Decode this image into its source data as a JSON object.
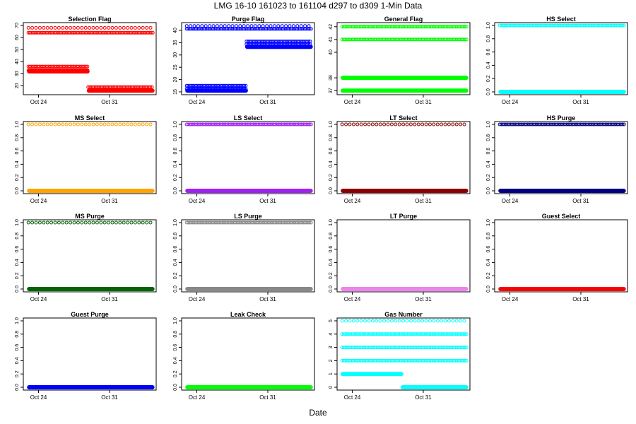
{
  "page_title": "LMG   16-10     161023 to 161104     d297 to d309    1-Min Data",
  "x_axis_label": "Date",
  "chart_data": [
    {
      "type": "scatter",
      "title": "Selection Flag",
      "color": "#ff0000",
      "xlim": [
        296.5,
        309.6
      ],
      "xticks": [
        {
          "value": 298,
          "label": "Oct 24"
        },
        {
          "value": 305,
          "label": "Oct 31"
        }
      ],
      "ylim": [
        15,
        70
      ],
      "yticks": [
        20,
        30,
        40,
        50,
        60,
        70
      ],
      "series": [
        {
          "name": "y=68 sparse",
          "x_start": 297.0,
          "x_end": 309.3,
          "y": 68,
          "style": "sparse"
        },
        {
          "name": "y=64",
          "x_start": 297.0,
          "x_end": 309.3,
          "y": 64,
          "style": "dense"
        },
        {
          "name": "y=36",
          "x_start": 297.0,
          "x_end": 302.9,
          "y": 36,
          "style": "dense"
        },
        {
          "name": "y=33",
          "x_start": 297.0,
          "x_end": 302.9,
          "y": 33,
          "style": "dense"
        },
        {
          "name": "y=32",
          "x_start": 297.0,
          "x_end": 302.9,
          "y": 32,
          "style": "solid"
        },
        {
          "name": "y=19",
          "x_start": 302.9,
          "x_end": 309.3,
          "y": 19,
          "style": "dense"
        },
        {
          "name": "y=16",
          "x_start": 302.9,
          "x_end": 309.3,
          "y": 16,
          "style": "solid"
        }
      ]
    },
    {
      "type": "scatter",
      "title": "Purge Flag",
      "color": "#0000ff",
      "xlim": [
        296.5,
        309.6
      ],
      "xticks": [
        {
          "value": 298,
          "label": "Oct 24"
        },
        {
          "value": 305,
          "label": "Oct 31"
        }
      ],
      "ylim": [
        15,
        42
      ],
      "yticks": [
        15,
        20,
        25,
        30,
        35,
        40
      ],
      "series": [
        {
          "name": "y=41.8 sparse",
          "x_start": 297.0,
          "x_end": 309.3,
          "y": 41.8,
          "style": "sparse"
        },
        {
          "name": "y=40.6",
          "x_start": 297.0,
          "x_end": 309.3,
          "y": 40.6,
          "style": "dense"
        },
        {
          "name": "y=17.5",
          "x_start": 297.0,
          "x_end": 302.9,
          "y": 17.5,
          "style": "dense"
        },
        {
          "name": "y=16.3",
          "x_start": 297.0,
          "x_end": 302.9,
          "y": 16.3,
          "style": "dense"
        },
        {
          "name": "y=15.5",
          "x_start": 297.0,
          "x_end": 302.9,
          "y": 15.5,
          "style": "solid"
        },
        {
          "name": "y=35.5",
          "x_start": 302.9,
          "x_end": 309.3,
          "y": 35.5,
          "style": "dense"
        },
        {
          "name": "y=34.3",
          "x_start": 302.9,
          "x_end": 309.3,
          "y": 34.3,
          "style": "dense"
        },
        {
          "name": "y=33.3",
          "x_start": 302.9,
          "x_end": 309.3,
          "y": 33.3,
          "style": "solid"
        }
      ]
    },
    {
      "type": "scatter",
      "title": "General Flag",
      "color": "#00ff00",
      "xlim": [
        296.5,
        309.6
      ],
      "xticks": [
        {
          "value": 298,
          "label": "Oct 24"
        },
        {
          "value": 305,
          "label": "Oct 31"
        }
      ],
      "ylim": [
        36.9,
        42.1
      ],
      "yticks": [
        37,
        38,
        40,
        41,
        42
      ],
      "ytick_labels": [
        "37",
        "38",
        "40",
        "41",
        "42"
      ],
      "series": [
        {
          "name": "y=42",
          "x_start": 297.0,
          "x_end": 309.3,
          "y": 42,
          "style": "dense"
        },
        {
          "name": "y=41",
          "x_start": 297.0,
          "x_end": 309.3,
          "y": 41,
          "style": "dense"
        },
        {
          "name": "y=38",
          "x_start": 297.0,
          "x_end": 309.3,
          "y": 38,
          "style": "solid"
        },
        {
          "name": "y=37",
          "x_start": 297.0,
          "x_end": 309.3,
          "y": 37,
          "style": "solid"
        }
      ]
    },
    {
      "type": "scatter",
      "title": "HS Select",
      "color": "#00ffff",
      "xlim": [
        296.5,
        309.6
      ],
      "xticks": [
        {
          "value": 298,
          "label": "Oct 24"
        },
        {
          "value": 305,
          "label": "Oct 31"
        }
      ],
      "ylim": [
        0,
        1
      ],
      "yticks": [
        0.0,
        0.2,
        0.4,
        0.6,
        0.8,
        1.0
      ],
      "ytick_labels": [
        "0.0",
        "0.2",
        "0.4",
        "0.6",
        "0.8",
        "1.0"
      ],
      "series": [
        {
          "name": "y=1",
          "x_start": 297.0,
          "x_end": 309.3,
          "y": 1,
          "style": "dense"
        },
        {
          "name": "y=0",
          "x_start": 297.0,
          "x_end": 309.3,
          "y": 0,
          "style": "solid"
        }
      ]
    },
    {
      "type": "scatter",
      "title": "MS Select",
      "color": "#ffa500",
      "xlim": [
        296.5,
        309.6
      ],
      "xticks": [
        {
          "value": 298,
          "label": "Oct 24"
        },
        {
          "value": 305,
          "label": "Oct 31"
        }
      ],
      "ylim": [
        0,
        1
      ],
      "yticks": [
        0.0,
        0.2,
        0.4,
        0.6,
        0.8,
        1.0
      ],
      "ytick_labels": [
        "0.0",
        "0.2",
        "0.4",
        "0.6",
        "0.8",
        "1.0"
      ],
      "series": [
        {
          "name": "y=1",
          "x_start": 297.0,
          "x_end": 309.3,
          "y": 1,
          "style": "sparse"
        },
        {
          "name": "y=0",
          "x_start": 297.0,
          "x_end": 309.3,
          "y": 0,
          "style": "solid"
        }
      ]
    },
    {
      "type": "scatter",
      "title": "LS Select",
      "color": "#a020f0",
      "xlim": [
        296.5,
        309.6
      ],
      "xticks": [
        {
          "value": 298,
          "label": "Oct 24"
        },
        {
          "value": 305,
          "label": "Oct 31"
        }
      ],
      "ylim": [
        0,
        1
      ],
      "yticks": [
        0.0,
        0.2,
        0.4,
        0.6,
        0.8,
        1.0
      ],
      "ytick_labels": [
        "0.0",
        "0.2",
        "0.4",
        "0.6",
        "0.8",
        "1.0"
      ],
      "series": [
        {
          "name": "y=1",
          "x_start": 297.0,
          "x_end": 309.3,
          "y": 1,
          "style": "dense"
        },
        {
          "name": "y=0",
          "x_start": 297.0,
          "x_end": 309.3,
          "y": 0,
          "style": "solid"
        }
      ]
    },
    {
      "type": "scatter",
      "title": "LT Select",
      "color": "#8b0000",
      "xlim": [
        296.5,
        309.6
      ],
      "xticks": [
        {
          "value": 298,
          "label": "Oct 24"
        },
        {
          "value": 305,
          "label": "Oct 31"
        }
      ],
      "ylim": [
        0,
        1
      ],
      "yticks": [
        0.0,
        0.2,
        0.4,
        0.6,
        0.8,
        1.0
      ],
      "ytick_labels": [
        "0.0",
        "0.2",
        "0.4",
        "0.6",
        "0.8",
        "1.0"
      ],
      "series": [
        {
          "name": "y=1",
          "x_start": 297.0,
          "x_end": 309.3,
          "y": 1,
          "style": "sparse"
        },
        {
          "name": "y=0",
          "x_start": 297.0,
          "x_end": 309.3,
          "y": 0,
          "style": "solid"
        }
      ]
    },
    {
      "type": "scatter",
      "title": "HS Purge",
      "color": "#000080",
      "xlim": [
        296.5,
        309.6
      ],
      "xticks": [
        {
          "value": 298,
          "label": "Oct 24"
        },
        {
          "value": 305,
          "label": "Oct 31"
        }
      ],
      "ylim": [
        0,
        1
      ],
      "yticks": [
        0.0,
        0.2,
        0.4,
        0.6,
        0.8,
        1.0
      ],
      "ytick_labels": [
        "0.0",
        "0.2",
        "0.4",
        "0.6",
        "0.8",
        "1.0"
      ],
      "series": [
        {
          "name": "y=1",
          "x_start": 297.0,
          "x_end": 309.3,
          "y": 1,
          "style": "dense"
        },
        {
          "name": "y=0",
          "x_start": 297.0,
          "x_end": 309.3,
          "y": 0,
          "style": "solid"
        }
      ]
    },
    {
      "type": "scatter",
      "title": "MS Purge",
      "color": "#006400",
      "xlim": [
        296.5,
        309.6
      ],
      "xticks": [
        {
          "value": 298,
          "label": "Oct 24"
        },
        {
          "value": 305,
          "label": "Oct 31"
        }
      ],
      "ylim": [
        0,
        1
      ],
      "yticks": [
        0.0,
        0.2,
        0.4,
        0.6,
        0.8,
        1.0
      ],
      "ytick_labels": [
        "0.0",
        "0.2",
        "0.4",
        "0.6",
        "0.8",
        "1.0"
      ],
      "series": [
        {
          "name": "y=1",
          "x_start": 297.0,
          "x_end": 309.3,
          "y": 1,
          "style": "sparse"
        },
        {
          "name": "y=0",
          "x_start": 297.0,
          "x_end": 309.3,
          "y": 0,
          "style": "solid"
        }
      ]
    },
    {
      "type": "scatter",
      "title": "LS Purge",
      "color": "#888888",
      "xlim": [
        296.5,
        309.6
      ],
      "xticks": [
        {
          "value": 298,
          "label": "Oct 24"
        },
        {
          "value": 305,
          "label": "Oct 31"
        }
      ],
      "ylim": [
        0,
        1
      ],
      "yticks": [
        0.0,
        0.2,
        0.4,
        0.6,
        0.8,
        1.0
      ],
      "ytick_labels": [
        "0.0",
        "0.2",
        "0.4",
        "0.6",
        "0.8",
        "1.0"
      ],
      "series": [
        {
          "name": "y=1",
          "x_start": 297.0,
          "x_end": 309.3,
          "y": 1,
          "style": "dense"
        },
        {
          "name": "y=0",
          "x_start": 297.0,
          "x_end": 309.3,
          "y": 0,
          "style": "solid"
        }
      ]
    },
    {
      "type": "scatter",
      "title": "LT Purge",
      "color": "#ee82ee",
      "xlim": [
        296.5,
        309.6
      ],
      "xticks": [
        {
          "value": 298,
          "label": "Oct 24"
        },
        {
          "value": 305,
          "label": "Oct 31"
        }
      ],
      "ylim": [
        0,
        1
      ],
      "yticks": [
        0.0,
        0.2,
        0.4,
        0.6,
        0.8,
        1.0
      ],
      "ytick_labels": [
        "0.0",
        "0.2",
        "0.4",
        "0.6",
        "0.8",
        "1.0"
      ],
      "series": [
        {
          "name": "y=0",
          "x_start": 297.0,
          "x_end": 309.3,
          "y": 0,
          "style": "solid"
        }
      ]
    },
    {
      "type": "scatter",
      "title": "Guest Select",
      "color": "#ff0000",
      "xlim": [
        296.5,
        309.6
      ],
      "xticks": [
        {
          "value": 298,
          "label": "Oct 24"
        },
        {
          "value": 305,
          "label": "Oct 31"
        }
      ],
      "ylim": [
        0,
        1
      ],
      "yticks": [
        0.0,
        0.2,
        0.4,
        0.6,
        0.8,
        1.0
      ],
      "ytick_labels": [
        "0.0",
        "0.2",
        "0.4",
        "0.6",
        "0.8",
        "1.0"
      ],
      "series": [
        {
          "name": "y=0",
          "x_start": 297.0,
          "x_end": 309.3,
          "y": 0,
          "style": "solid"
        }
      ]
    },
    {
      "type": "scatter",
      "title": "Guest Purge",
      "color": "#0000ff",
      "xlim": [
        296.5,
        309.6
      ],
      "xticks": [
        {
          "value": 298,
          "label": "Oct 24"
        },
        {
          "value": 305,
          "label": "Oct 31"
        }
      ],
      "ylim": [
        0,
        1
      ],
      "yticks": [
        0.0,
        0.2,
        0.4,
        0.6,
        0.8,
        1.0
      ],
      "ytick_labels": [
        "0.0",
        "0.2",
        "0.4",
        "0.6",
        "0.8",
        "1.0"
      ],
      "series": [
        {
          "name": "y=0",
          "x_start": 297.0,
          "x_end": 309.3,
          "y": 0,
          "style": "solid"
        }
      ]
    },
    {
      "type": "scatter",
      "title": "Leak Check",
      "color": "#00ff00",
      "xlim": [
        296.5,
        309.6
      ],
      "xticks": [
        {
          "value": 298,
          "label": "Oct 24"
        },
        {
          "value": 305,
          "label": "Oct 31"
        }
      ],
      "ylim": [
        0,
        1
      ],
      "yticks": [
        0.0,
        0.2,
        0.4,
        0.6,
        0.8,
        1.0
      ],
      "ytick_labels": [
        "0.0",
        "0.2",
        "0.4",
        "0.6",
        "0.8",
        "1.0"
      ],
      "series": [
        {
          "name": "y=0",
          "x_start": 297.0,
          "x_end": 309.3,
          "y": 0,
          "style": "solid"
        }
      ]
    },
    {
      "type": "scatter",
      "title": "Gas Number",
      "color": "#00ffff",
      "xlim": [
        296.5,
        309.6
      ],
      "xticks": [
        {
          "value": 298,
          "label": "Oct 24"
        },
        {
          "value": 305,
          "label": "Oct 31"
        }
      ],
      "ylim": [
        0,
        5
      ],
      "yticks": [
        0,
        1,
        2,
        3,
        4,
        5
      ],
      "ytick_labels": [
        "0",
        "1",
        "2",
        "3",
        "4",
        "5"
      ],
      "series": [
        {
          "name": "y=5",
          "x_start": 297.0,
          "x_end": 309.3,
          "y": 5,
          "style": "sparse"
        },
        {
          "name": "y=4",
          "x_start": 297.0,
          "x_end": 309.3,
          "y": 4,
          "style": "dense"
        },
        {
          "name": "y=3",
          "x_start": 297.0,
          "x_end": 309.3,
          "y": 3,
          "style": "dense"
        },
        {
          "name": "y=2",
          "x_start": 297.0,
          "x_end": 309.3,
          "y": 2,
          "style": "dense"
        },
        {
          "name": "y=1",
          "x_start": 297.0,
          "x_end": 302.9,
          "y": 1,
          "style": "solid"
        },
        {
          "name": "y=0",
          "x_start": 302.9,
          "x_end": 309.3,
          "y": 0,
          "style": "solid"
        }
      ]
    }
  ]
}
